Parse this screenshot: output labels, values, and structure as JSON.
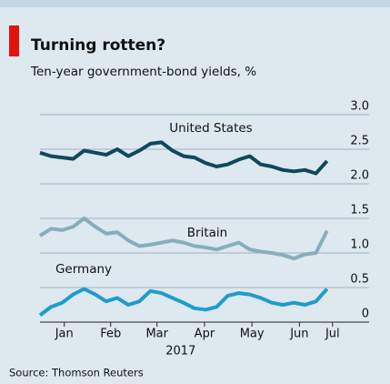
{
  "chart_data": {
    "type": "line",
    "title": "Turning rotten?",
    "subtitle": "Ten-year government-bond yields, %",
    "source": "Source: Thomson Reuters",
    "xlabel": "2017",
    "x": [
      0,
      1,
      2,
      3,
      4,
      5,
      6,
      7,
      8,
      9,
      10,
      11,
      12,
      13,
      14,
      15,
      16,
      17,
      18,
      19,
      20,
      21,
      22,
      23,
      24,
      25,
      26
    ],
    "xlim": [
      0,
      28
    ],
    "xticks": [
      {
        "value": 2.2,
        "label": "Jan"
      },
      {
        "value": 6.4,
        "label": "Feb"
      },
      {
        "value": 10.6,
        "label": "Mar"
      },
      {
        "value": 14.9,
        "label": "Apr"
      },
      {
        "value": 19.2,
        "label": "May"
      },
      {
        "value": 23.5,
        "label": "Jun"
      },
      {
        "value": 26.5,
        "label": "Jul"
      }
    ],
    "ylim": [
      0,
      3
    ],
    "yticks": [
      0,
      0.5,
      {
        "value": 1,
        "label": "1.0"
      },
      1.5,
      {
        "value": 2,
        "label": "2.0"
      },
      2.5,
      {
        "value": 3,
        "label": "3.0"
      }
    ],
    "grid": true,
    "series": [
      {
        "name": "United States",
        "color": "#0e4a5b",
        "values": [
          2.45,
          2.4,
          2.38,
          2.36,
          2.48,
          2.45,
          2.42,
          2.5,
          2.4,
          2.48,
          2.58,
          2.6,
          2.48,
          2.4,
          2.38,
          2.3,
          2.25,
          2.28,
          2.35,
          2.4,
          2.28,
          2.25,
          2.2,
          2.18,
          2.2,
          2.15,
          2.33
        ]
      },
      {
        "name": "Britain",
        "color": "#86aebb",
        "values": [
          1.25,
          1.35,
          1.33,
          1.38,
          1.5,
          1.38,
          1.28,
          1.3,
          1.18,
          1.1,
          1.12,
          1.15,
          1.18,
          1.15,
          1.1,
          1.08,
          1.05,
          1.1,
          1.15,
          1.05,
          1.02,
          1.0,
          0.97,
          0.92,
          0.98,
          1.0,
          1.32
        ]
      },
      {
        "name": "Germany",
        "color": "#1f9ccb",
        "values": [
          0.1,
          0.22,
          0.28,
          0.4,
          0.48,
          0.4,
          0.3,
          0.35,
          0.25,
          0.3,
          0.45,
          0.42,
          0.35,
          0.28,
          0.2,
          0.18,
          0.22,
          0.38,
          0.42,
          0.4,
          0.35,
          0.28,
          0.25,
          0.28,
          0.25,
          0.3,
          0.48
        ]
      }
    ]
  }
}
